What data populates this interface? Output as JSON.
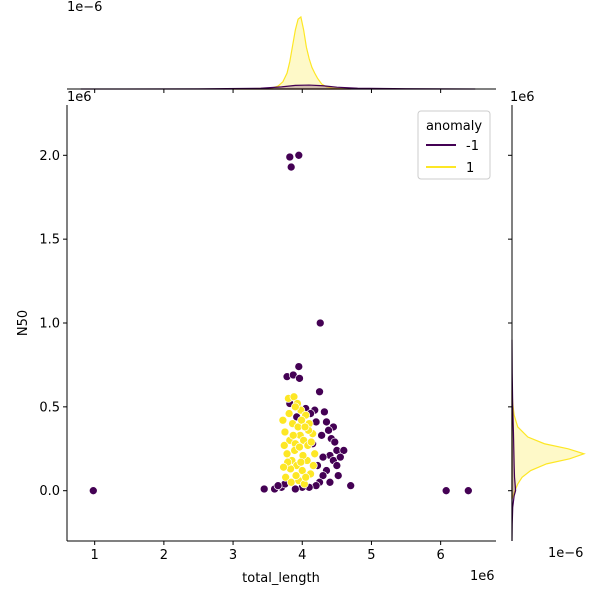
{
  "chart_data": {
    "type": "scatter",
    "xlabel": "total_length",
    "ylabel": "N50",
    "x_offset_label": "1e6",
    "y_offset_label": "1e6",
    "top_marginal_offset_label": "1e−6",
    "right_marginal_offset_label": "1e−6",
    "xlim": [
      0.6,
      6.8
    ],
    "ylim": [
      -0.3,
      2.3
    ],
    "x_ticks": [
      1,
      2,
      3,
      4,
      5,
      6
    ],
    "x_tick_labels": [
      "1",
      "2",
      "3",
      "4",
      "5",
      "6"
    ],
    "y_ticks": [
      0.0,
      0.5,
      1.0,
      1.5,
      2.0
    ],
    "y_tick_labels": [
      "0.0",
      "0.5",
      "1.0",
      "1.5",
      "2.0"
    ],
    "legend": {
      "title": "anomaly",
      "placement": "top-right",
      "entries": [
        {
          "label": "-1",
          "color": "#440154"
        },
        {
          "label": "1",
          "color": "#fde725"
        }
      ]
    },
    "series": [
      {
        "name": "-1",
        "color": "#440154",
        "points": [
          [
            0.98,
            0.0
          ],
          [
            3.82,
            1.99
          ],
          [
            3.95,
            2.0
          ],
          [
            3.84,
            1.93
          ],
          [
            4.26,
            1.0
          ],
          [
            6.08,
            0.0
          ],
          [
            6.4,
            0.0
          ],
          [
            4.7,
            0.03
          ],
          [
            3.45,
            0.01
          ],
          [
            3.6,
            0.01
          ],
          [
            3.78,
            0.68
          ],
          [
            3.87,
            0.69
          ],
          [
            3.95,
            0.74
          ],
          [
            3.96,
            0.67
          ],
          [
            4.25,
            0.59
          ],
          [
            4.18,
            0.48
          ],
          [
            4.32,
            0.47
          ],
          [
            4.2,
            0.41
          ],
          [
            4.35,
            0.41
          ],
          [
            4.45,
            0.38
          ],
          [
            4.42,
            0.31
          ],
          [
            4.47,
            0.29
          ],
          [
            4.5,
            0.24
          ],
          [
            4.6,
            0.24
          ],
          [
            4.4,
            0.21
          ],
          [
            4.45,
            0.18
          ],
          [
            4.5,
            0.15
          ],
          [
            4.52,
            0.09
          ],
          [
            4.35,
            0.12
          ],
          [
            4.3,
            0.09
          ],
          [
            4.25,
            0.05
          ],
          [
            4.2,
            0.03
          ],
          [
            4.1,
            0.02
          ],
          [
            4.0,
            0.02
          ],
          [
            3.9,
            0.01
          ],
          [
            3.7,
            0.02
          ],
          [
            3.75,
            0.04
          ],
          [
            4.15,
            0.28
          ],
          [
            4.28,
            0.33
          ],
          [
            4.38,
            0.36
          ],
          [
            4.22,
            0.15
          ],
          [
            4.12,
            0.1
          ],
          [
            4.3,
            0.2
          ],
          [
            3.82,
            0.52
          ],
          [
            3.92,
            0.44
          ],
          [
            4.05,
            0.49
          ],
          [
            4.12,
            0.46
          ],
          [
            4.4,
            0.05
          ],
          [
            3.65,
            0.03
          ],
          [
            4.55,
            0.2
          ]
        ]
      },
      {
        "name": "1",
        "color": "#fde725",
        "points": [
          [
            3.72,
            0.42
          ],
          [
            3.8,
            0.55
          ],
          [
            3.88,
            0.56
          ],
          [
            3.93,
            0.52
          ],
          [
            3.98,
            0.48
          ],
          [
            4.05,
            0.45
          ],
          [
            4.1,
            0.4
          ],
          [
            3.75,
            0.35
          ],
          [
            3.82,
            0.3
          ],
          [
            3.9,
            0.28
          ],
          [
            3.97,
            0.33
          ],
          [
            4.02,
            0.3
          ],
          [
            4.08,
            0.27
          ],
          [
            4.15,
            0.34
          ],
          [
            4.18,
            0.22
          ],
          [
            3.78,
            0.22
          ],
          [
            3.85,
            0.18
          ],
          [
            3.92,
            0.15
          ],
          [
            4.0,
            0.12
          ],
          [
            4.07,
            0.18
          ],
          [
            4.12,
            0.1
          ],
          [
            3.76,
            0.08
          ],
          [
            3.84,
            0.05
          ],
          [
            3.95,
            0.06
          ],
          [
            4.03,
            0.04
          ],
          [
            3.86,
            0.4
          ],
          [
            3.94,
            0.38
          ],
          [
            4.01,
            0.21
          ],
          [
            3.89,
            0.24
          ],
          [
            3.81,
            0.46
          ],
          [
            3.74,
            0.27
          ],
          [
            4.16,
            0.15
          ],
          [
            4.09,
            0.36
          ],
          [
            3.99,
            0.42
          ],
          [
            3.91,
            0.09
          ],
          [
            3.83,
            0.13
          ],
          [
            4.05,
            0.08
          ],
          [
            3.79,
            0.17
          ],
          [
            3.96,
            0.26
          ],
          [
            4.13,
            0.29
          ],
          [
            3.87,
            0.33
          ],
          [
            3.73,
            0.14
          ],
          [
            3.9,
            0.5
          ],
          [
            4.04,
            0.38
          ],
          [
            3.98,
            0.17
          ]
        ]
      }
    ],
    "marginal_x": {
      "series": [
        {
          "name": "1",
          "color": "#fde725",
          "x": [
            3.0,
            3.55,
            3.65,
            3.72,
            3.78,
            3.82,
            3.86,
            3.9,
            3.94,
            3.98,
            4.02,
            4.06,
            4.1,
            4.14,
            4.18,
            4.22,
            4.28,
            4.35,
            4.45,
            4.7
          ],
          "density": [
            0.0,
            0.01,
            0.04,
            0.1,
            0.22,
            0.38,
            0.6,
            0.82,
            0.97,
            1.0,
            0.82,
            0.58,
            0.42,
            0.3,
            0.22,
            0.15,
            0.07,
            0.03,
            0.01,
            0.0
          ]
        },
        {
          "name": "-1",
          "color": "#440154",
          "x": [
            0.8,
            2.5,
            3.4,
            3.7,
            3.9,
            4.1,
            4.3,
            4.5,
            4.8,
            5.5,
            6.5
          ],
          "density": [
            0.0,
            0.002,
            0.01,
            0.03,
            0.05,
            0.055,
            0.045,
            0.025,
            0.01,
            0.004,
            0.0
          ]
        }
      ]
    },
    "marginal_y": {
      "series": [
        {
          "name": "1",
          "color": "#fde725",
          "y": [
            -0.05,
            0.0,
            0.04,
            0.08,
            0.12,
            0.16,
            0.19,
            0.22,
            0.25,
            0.28,
            0.32,
            0.38,
            0.45,
            0.52,
            0.6
          ],
          "density": [
            0.0,
            0.04,
            0.08,
            0.14,
            0.26,
            0.48,
            0.8,
            1.0,
            0.78,
            0.45,
            0.22,
            0.08,
            0.03,
            0.01,
            0.0
          ]
        },
        {
          "name": "-1",
          "color": "#440154",
          "y": [
            -0.3,
            -0.2,
            -0.1,
            -0.03,
            0.0,
            0.03,
            0.08,
            0.15,
            0.25,
            0.35,
            0.5,
            0.7,
            0.9
          ],
          "density": [
            0.0,
            0.003,
            0.01,
            0.03,
            0.05,
            0.045,
            0.035,
            0.03,
            0.025,
            0.02,
            0.01,
            0.003,
            0.0
          ]
        }
      ]
    }
  }
}
